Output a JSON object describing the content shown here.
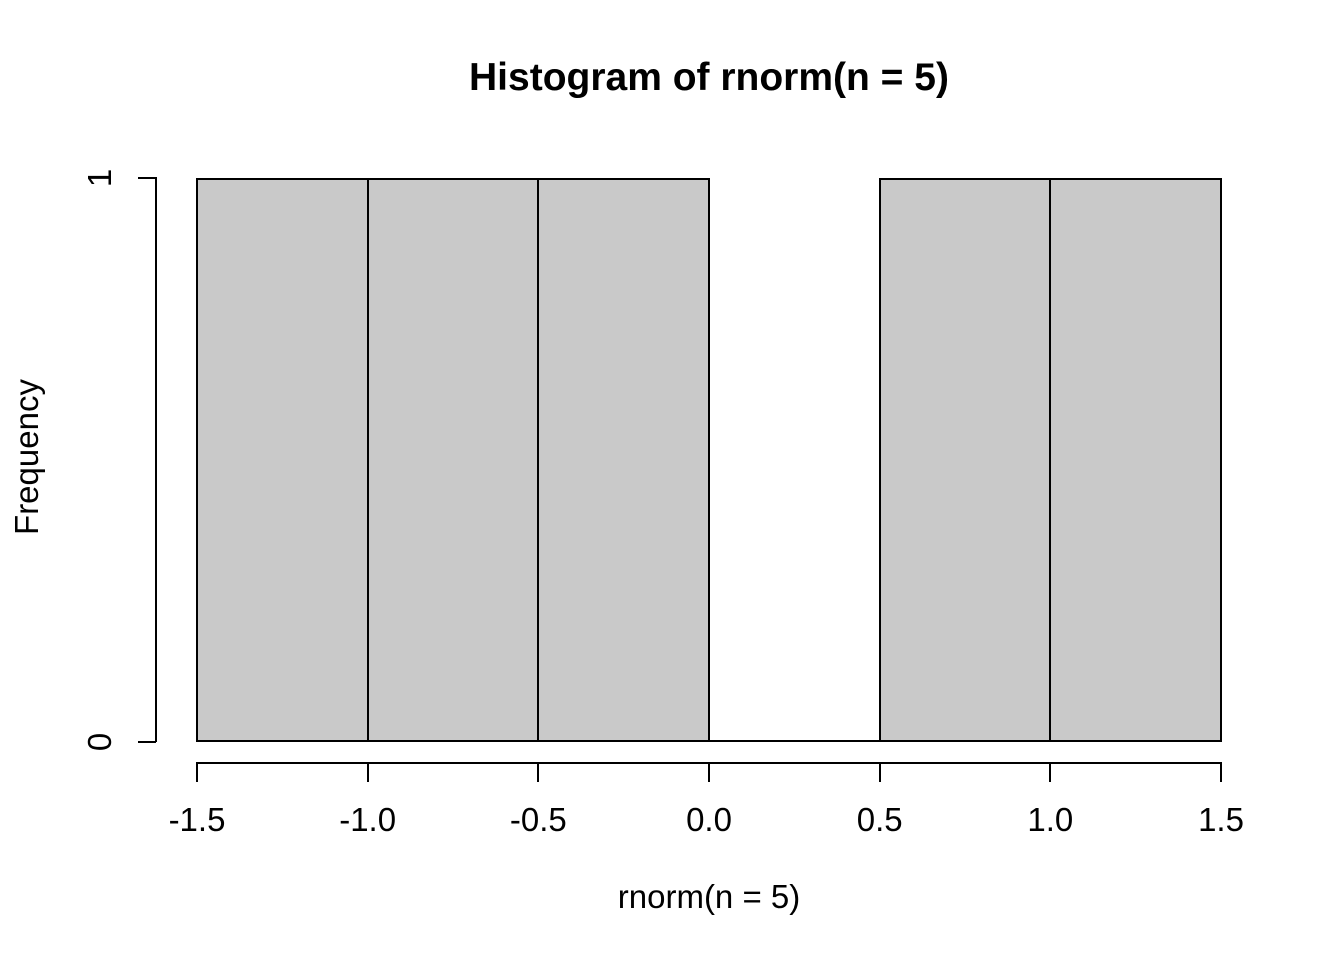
{
  "chart_data": {
    "type": "bar",
    "subtype": "histogram",
    "title": "Histogram of rnorm(n = 5)",
    "xlabel": "rnorm(n = 5)",
    "ylabel": "Frequency",
    "bin_edges": [
      -1.5,
      -1.0,
      -0.5,
      0.0,
      0.5,
      1.0,
      1.5
    ],
    "counts": [
      1,
      1,
      1,
      0,
      1,
      1
    ],
    "xlim": [
      -1.5,
      1.5
    ],
    "ylim": [
      0,
      1
    ],
    "x_ticks": [
      {
        "value": -1.5,
        "label": "-1.5"
      },
      {
        "value": -1.0,
        "label": "-1.0"
      },
      {
        "value": -0.5,
        "label": "-0.5"
      },
      {
        "value": 0.0,
        "label": "0.0"
      },
      {
        "value": 0.5,
        "label": "0.5"
      },
      {
        "value": 1.0,
        "label": "1.0"
      },
      {
        "value": 1.5,
        "label": "1.5"
      }
    ],
    "y_ticks": [
      {
        "value": 0,
        "label": "0"
      },
      {
        "value": 1,
        "label": "1"
      }
    ],
    "grid": false,
    "legend_position": "none",
    "colors": {
      "bar_fill": "#c9c9c9",
      "bar_border": "#000000",
      "axis": "#000000",
      "text": "#000000",
      "background": "#ffffff"
    }
  }
}
